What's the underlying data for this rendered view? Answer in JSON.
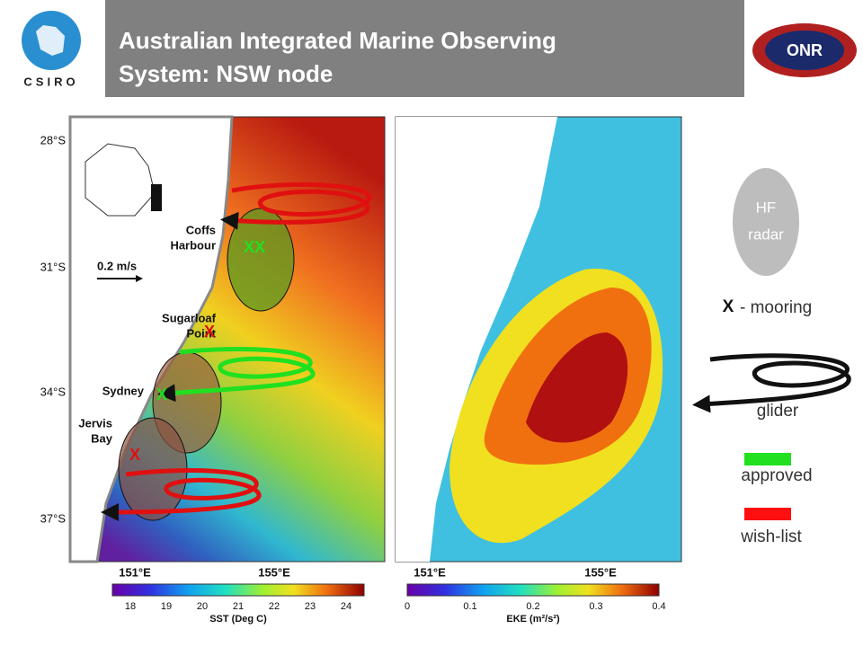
{
  "header": {
    "logo_left": "CSIRO",
    "title_lines": [
      "Australian Integrated Marine Observing",
      "System: NSW node"
    ],
    "logo_right": "ONR"
  },
  "sst_map": {
    "lat_labels": [
      "28°S",
      "31°S",
      "34°S",
      "37°S"
    ],
    "lon_labels": [
      "151°E",
      "155°E"
    ],
    "places": [
      [
        "Coffs",
        "Harbour"
      ],
      [
        "Sugarloaf",
        "Point"
      ],
      [
        "Sydney"
      ],
      [
        "Jervis",
        "Bay"
      ]
    ],
    "scale_label": "0.2 m/s",
    "markers": [
      "XX",
      "X",
      "X",
      "X"
    ],
    "colorbar": {
      "ticks": [
        "18",
        "19",
        "20",
        "21",
        "22",
        "23",
        "24"
      ],
      "label": "SST (Deg C)"
    }
  },
  "eke_map": {
    "lon_labels": [
      "151°E",
      "155°E"
    ],
    "colorbar": {
      "ticks": [
        "0",
        "0.1",
        "0.2",
        "0.3",
        "0.4"
      ],
      "label": "EKE (m²/s²)"
    }
  },
  "legend": {
    "hf_radar": [
      "HF",
      "radar"
    ],
    "mooring_symbol": "X",
    "mooring": "- mooring",
    "glider": "glider",
    "approved": "approved",
    "wish_list": "wish-list"
  }
}
